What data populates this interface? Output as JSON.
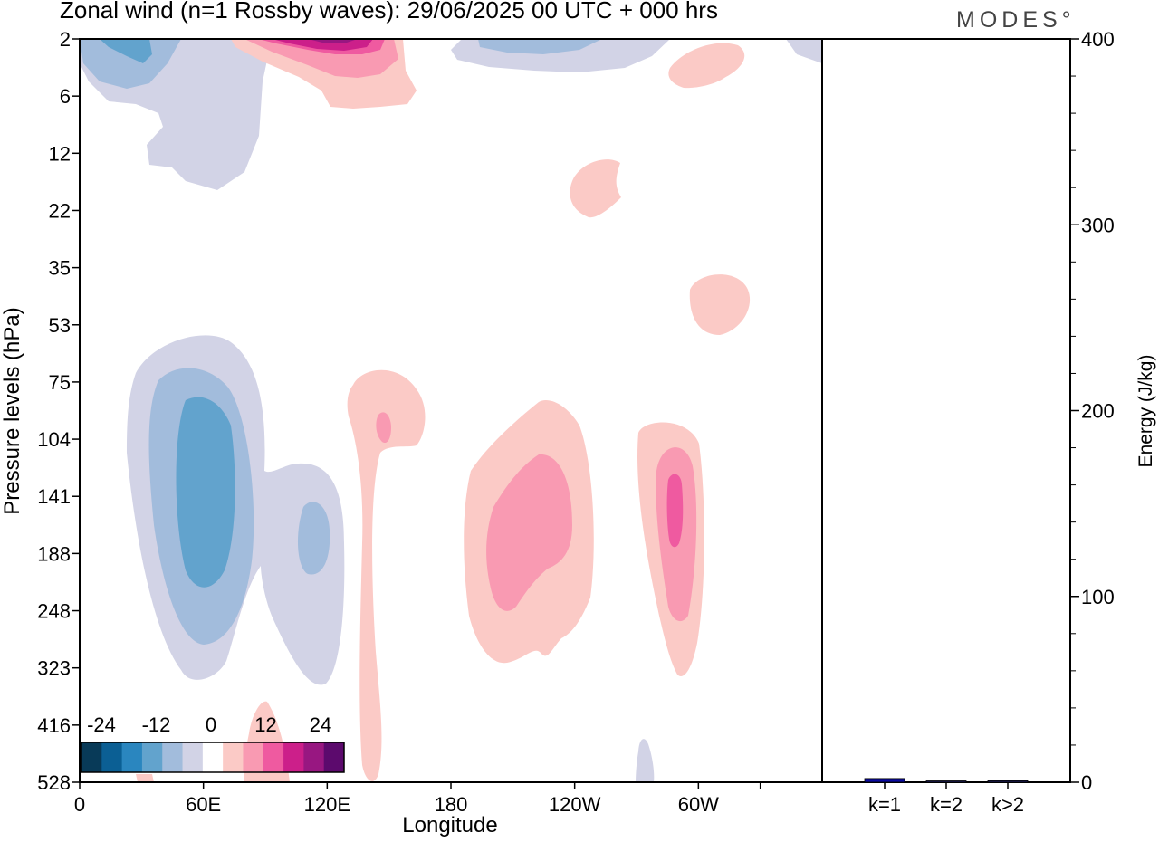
{
  "header": {
    "title": "Zonal wind (n=1 Rossby waves):  29/06/2025  00 UTC  + 000 hrs",
    "brand": "MODES°"
  },
  "chart_data": [
    {
      "type": "heatmap",
      "subtype": "filled-contour",
      "xlabel": "Longitude",
      "ylabel": "Pressure levels (hPa)",
      "x_ticks": [
        "0",
        "60E",
        "120E",
        "180",
        "120W",
        "60W"
      ],
      "x_range_deg_east": [
        0,
        360
      ],
      "y_ticks": [
        "2",
        "6",
        "12",
        "22",
        "35",
        "53",
        "75",
        "104",
        "141",
        "188",
        "248",
        "323",
        "416",
        "528"
      ],
      "colorbar": {
        "tick_labels": [
          "-24",
          "-12",
          "0",
          "12",
          "24"
        ],
        "colors": [
          "#083a58",
          "#0b5f94",
          "#2a86bf",
          "#62a3cd",
          "#a2bcdc",
          "#d2d3e6",
          "#ffffff",
          "#fbcac6",
          "#f99ab2",
          "#ef5aa0",
          "#cc1f8a",
          "#981781",
          "#5c0a6d"
        ]
      },
      "contour_regions": [
        {
          "sign": "negative",
          "max_level": 3,
          "lon_center": 60,
          "p_center_hpa": 141,
          "peak": -14
        },
        {
          "sign": "negative",
          "max_level": 1,
          "lon_center": 118,
          "p_center_hpa": 170,
          "peak": -8
        },
        {
          "sign": "negative",
          "max_level": 2,
          "lon_center": 20,
          "p_center_hpa": 2,
          "peak": -12
        },
        {
          "sign": "negative",
          "max_level": 1,
          "lon_center": 238,
          "p_center_hpa": 2,
          "peak": -8
        },
        {
          "sign": "positive",
          "max_level": 4,
          "lon_center": 125,
          "p_center_hpa": 2,
          "peak": 22
        },
        {
          "sign": "positive",
          "max_level": 2,
          "lon_center": 148,
          "p_center_hpa": 104,
          "peak": 8
        },
        {
          "sign": "positive",
          "max_level": 2,
          "lon_center": 212,
          "p_center_hpa": 160,
          "peak": 8
        },
        {
          "sign": "positive",
          "max_level": 3,
          "lon_center": 291,
          "p_center_hpa": 150,
          "peak": 12
        },
        {
          "sign": "positive",
          "max_level": 1,
          "lon_center": 300,
          "p_center_hpa": 45,
          "peak": 4
        },
        {
          "sign": "positive",
          "max_level": 1,
          "lon_center": 240,
          "p_center_hpa": 18,
          "peak": 4
        },
        {
          "sign": "positive",
          "max_level": 1,
          "lon_center": 298,
          "p_center_hpa": 4,
          "peak": 4
        }
      ]
    },
    {
      "type": "bar",
      "categories": [
        "k=1",
        "k=2",
        "k>2"
      ],
      "values": [
        2,
        0.3,
        0.8
      ],
      "ylabel": "Energy (J/kg)",
      "ylim": [
        0,
        400
      ],
      "y_ticks": [
        "0",
        "100",
        "200",
        "300",
        "400"
      ],
      "colors": [
        "#0a0aa0",
        "#202060",
        "#202060"
      ]
    }
  ]
}
